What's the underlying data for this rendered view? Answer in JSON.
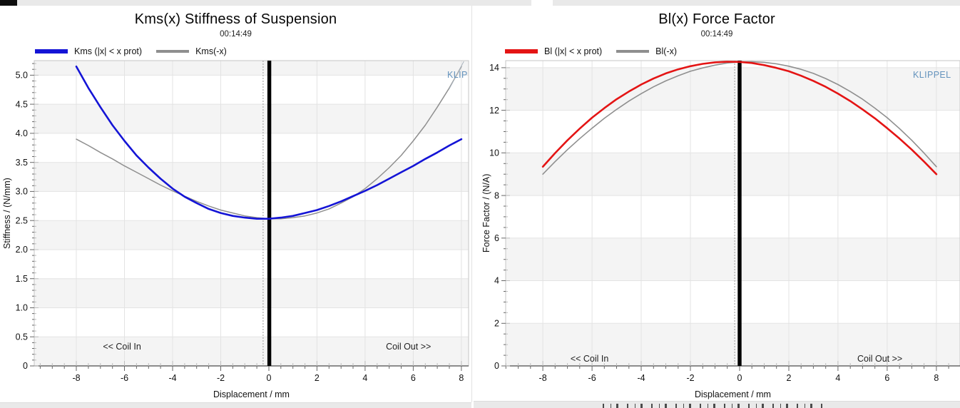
{
  "chart_data": [
    {
      "type": "line",
      "title": "Kms(x) Stiffness of Suspension",
      "subtitle": "00:14:49",
      "xlabel": "Displacement / mm",
      "ylabel": "Stiffness / (N/mm)",
      "watermark": "KLIP",
      "watermark_color": "#6493bd",
      "xlim": [
        -9.75,
        8.3
      ],
      "ylim": [
        0,
        5.25
      ],
      "xticks": [
        -8,
        -6,
        -4,
        -2,
        0,
        2,
        4,
        6,
        8
      ],
      "xtick_labels": [
        "-8",
        "-6",
        "-4",
        "-2",
        "0",
        "2",
        "4",
        "6",
        "8"
      ],
      "yticks": [
        0,
        0.5,
        1,
        1.5,
        2,
        2.5,
        3,
        3.5,
        4,
        4.5,
        5
      ],
      "ytick_labels": [
        "0",
        "0.5",
        "1.0",
        "1.5",
        "2.0",
        "2.5",
        "3.0",
        "3.5",
        "4.0",
        "4.5",
        "5.0"
      ],
      "minor_x": 0.5,
      "minor_y": 0.1,
      "band_step": 0.5,
      "cursor_x": 0.02,
      "dashed_x": -0.24,
      "annotations": [
        {
          "text": "<< Coil In",
          "x": -6.1,
          "y": 0.33
        },
        {
          "text": "Coil Out >>",
          "x": 5.8,
          "y": 0.33
        }
      ],
      "legend": [
        {
          "label": "Kms (|x| < x prot)",
          "color": "#1414d6",
          "thickness": 6
        },
        {
          "label": "Kms(-x)",
          "color": "#8f8f8f",
          "thickness": 4
        }
      ],
      "x": [
        -8,
        -7.5,
        -7,
        -6.5,
        -6,
        -5.5,
        -5,
        -4.5,
        -4,
        -3.5,
        -3,
        -2.5,
        -2,
        -1.5,
        -1,
        -0.5,
        0,
        0.5,
        1,
        1.5,
        2,
        2.5,
        3,
        3.5,
        4,
        4.5,
        5,
        5.5,
        6,
        6.5,
        7,
        7.5,
        8
      ],
      "series": [
        {
          "name": "Kms (|x| < x prot)",
          "color": "#1414d6",
          "width": 2.6,
          "y": [
            5.15,
            4.78,
            4.45,
            4.14,
            3.87,
            3.62,
            3.41,
            3.22,
            3.05,
            2.91,
            2.8,
            2.7,
            2.63,
            2.58,
            2.55,
            2.53,
            2.53,
            2.55,
            2.58,
            2.63,
            2.68,
            2.75,
            2.83,
            2.92,
            3.01,
            3.11,
            3.22,
            3.33,
            3.44,
            3.56,
            3.67,
            3.79,
            3.9
          ]
        },
        {
          "name": "Kms(-x)",
          "color": "#8f8f8f",
          "width": 1.5,
          "y": [
            3.9,
            3.79,
            3.67,
            3.56,
            3.44,
            3.33,
            3.22,
            3.11,
            3.01,
            2.92,
            2.83,
            2.75,
            2.68,
            2.63,
            2.58,
            2.55,
            2.53,
            2.53,
            2.55,
            2.58,
            2.63,
            2.7,
            2.8,
            2.91,
            3.05,
            3.22,
            3.41,
            3.62,
            3.87,
            4.14,
            4.45,
            4.78,
            5.15
          ]
        }
      ],
      "colors": {
        "band": "#f4f4f4",
        "grid": "#e3e3e3",
        "frame": "#c6c6c6",
        "axis": "#4a4a4a",
        "tick_out": "#666666",
        "tick_in": "#bdbdbd",
        "tick_text": "#111111",
        "annotation": "#222222"
      }
    },
    {
      "type": "line",
      "title": "Bl(x) Force Factor",
      "subtitle": "00:14:49",
      "xlabel": "Displacement / mm",
      "ylabel": "Force Factor / (N/A)",
      "watermark": "KLIPPEL",
      "watermark_color": "#6493bd",
      "xlim": [
        -9.51,
        8.96
      ],
      "ylim": [
        0,
        14.33
      ],
      "xticks": [
        -8,
        -6,
        -4,
        -2,
        0,
        2,
        4,
        6,
        8
      ],
      "xtick_labels": [
        "-8",
        "-6",
        "-4",
        "-2",
        "0",
        "2",
        "4",
        "6",
        "8"
      ],
      "yticks": [
        0,
        2,
        4,
        6,
        8,
        10,
        12,
        14
      ],
      "ytick_labels": [
        "0",
        "2",
        "4",
        "6",
        "8",
        "10",
        "12",
        "14"
      ],
      "minor_x": 0.5,
      "minor_y": 0.5,
      "band_step": 2,
      "cursor_x": 0.0,
      "dashed_x": -0.2,
      "annotations": [
        {
          "text": "<< Coil In",
          "x": -6.1,
          "y": 0.33
        },
        {
          "text": "Coil Out >>",
          "x": 5.7,
          "y": 0.33
        }
      ],
      "legend": [
        {
          "label": "Bl (|x| < x prot)",
          "color": "#e41414",
          "thickness": 6
        },
        {
          "label": "Bl(-x)",
          "color": "#8f8f8f",
          "thickness": 4
        }
      ],
      "x": [
        -8,
        -7.5,
        -7,
        -6.5,
        -6,
        -5.5,
        -5,
        -4.5,
        -4,
        -3.5,
        -3,
        -2.5,
        -2,
        -1.5,
        -1,
        -0.5,
        0,
        0.5,
        1,
        1.5,
        2,
        2.5,
        3,
        3.5,
        4,
        4.5,
        5,
        5.5,
        6,
        6.5,
        7,
        7.5,
        8
      ],
      "series": [
        {
          "name": "Bl (|x| < x prot)",
          "color": "#e41414",
          "width": 2.6,
          "y": [
            9.35,
            9.99,
            10.59,
            11.14,
            11.65,
            12.1,
            12.52,
            12.88,
            13.21,
            13.49,
            13.73,
            13.92,
            14.07,
            14.18,
            14.25,
            14.28,
            14.27,
            14.22,
            14.12,
            13.99,
            13.83,
            13.62,
            13.38,
            13.1,
            12.78,
            12.43,
            12.04,
            11.62,
            11.16,
            10.67,
            10.15,
            9.59,
            9.0
          ]
        },
        {
          "name": "Bl(-x)",
          "color": "#8f8f8f",
          "width": 1.6,
          "y": [
            9.0,
            9.59,
            10.15,
            10.67,
            11.16,
            11.62,
            12.04,
            12.43,
            12.78,
            13.1,
            13.38,
            13.62,
            13.83,
            13.99,
            14.12,
            14.22,
            14.27,
            14.28,
            14.25,
            14.18,
            14.07,
            13.92,
            13.73,
            13.49,
            13.21,
            12.88,
            12.52,
            12.1,
            11.65,
            11.14,
            10.59,
            9.99,
            9.35
          ]
        }
      ],
      "colors": {
        "band": "#f4f4f4",
        "grid": "#e3e3e3",
        "frame": "#c6c6c6",
        "axis": "#4a4a4a",
        "tick_out": "#666666",
        "tick_in": "#bdbdbd",
        "tick_text": "#111111",
        "annotation": "#222222"
      }
    }
  ]
}
